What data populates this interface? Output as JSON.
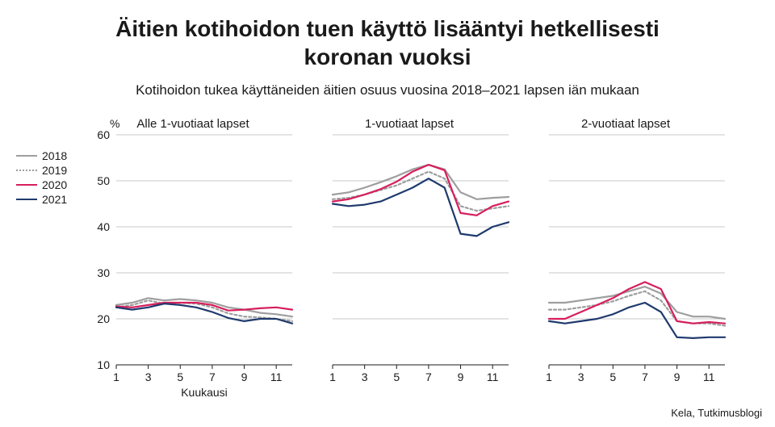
{
  "title_line1": "Äitien kotihoidon tuen käyttö lisääntyi hetkellisesti",
  "title_line2": "koronan vuoksi",
  "subtitle": "Kotihoidon tukea käyttäneiden äitien osuus vuosina 2018–2021 lapsen iän mukaan",
  "y_unit": "%",
  "x_label": "Kuukausi",
  "source": "Kela, Tutkimusblogi",
  "legend": [
    {
      "label": "2018",
      "color": "#9e9e9e",
      "dash": "none"
    },
    {
      "label": "2019",
      "color": "#9e9e9e",
      "dash": "3,3"
    },
    {
      "label": "2020",
      "color": "#d61f5c",
      "dash": "none"
    },
    {
      "label": "2021",
      "color": "#1f3a6e",
      "dash": "none"
    }
  ],
  "ylim": [
    10,
    60
  ],
  "yticks": [
    10,
    20,
    30,
    40,
    50,
    60
  ],
  "xlim": [
    1,
    12
  ],
  "xticks": [
    1,
    3,
    5,
    7,
    9,
    11
  ],
  "panels": [
    {
      "title": "Alle 1-vuotiaat lapset",
      "show_left_axis": true,
      "show_right_axis": false,
      "series": {
        "2018": [
          23.0,
          23.5,
          24.5,
          24.0,
          24.3,
          24.0,
          23.5,
          22.5,
          22.0,
          21.3,
          21.0,
          20.5
        ],
        "2019": [
          22.5,
          23.0,
          24.0,
          23.3,
          23.5,
          23.3,
          22.5,
          21.2,
          20.5,
          20.3,
          20.0,
          19.5
        ],
        "2020": [
          22.7,
          22.5,
          23.0,
          23.5,
          23.5,
          23.5,
          23.0,
          21.8,
          22.0,
          22.3,
          22.5,
          22.0
        ],
        "2021": [
          22.5,
          22.0,
          22.5,
          23.3,
          23.0,
          22.5,
          21.5,
          20.2,
          19.5,
          20.0,
          20.0,
          19.0
        ]
      }
    },
    {
      "title": "1-vuotiaat lapset",
      "show_left_axis": false,
      "show_right_axis": false,
      "series": {
        "2018": [
          47.0,
          47.5,
          48.5,
          49.7,
          51.0,
          52.5,
          53.5,
          52.5,
          47.5,
          46.0,
          46.3,
          46.5
        ],
        "2019": [
          46.0,
          46.3,
          47.0,
          48.0,
          49.0,
          50.5,
          52.0,
          50.5,
          44.5,
          43.5,
          44.0,
          44.5
        ],
        "2020": [
          45.5,
          46.0,
          47.0,
          48.2,
          49.8,
          52.0,
          53.5,
          52.3,
          43.0,
          42.5,
          44.5,
          45.5
        ],
        "2021": [
          45.0,
          44.5,
          44.8,
          45.5,
          47.0,
          48.5,
          50.5,
          48.5,
          38.5,
          38.0,
          40.0,
          41.0
        ]
      }
    },
    {
      "title": "2-vuotiaat lapset",
      "show_left_axis": false,
      "show_right_axis": true,
      "series": {
        "2018": [
          23.5,
          23.5,
          24.0,
          24.5,
          25.0,
          26.0,
          27.0,
          25.5,
          21.5,
          20.5,
          20.5,
          20.0
        ],
        "2019": [
          22.0,
          22.0,
          22.5,
          23.0,
          23.8,
          25.0,
          26.0,
          24.0,
          19.5,
          19.0,
          19.0,
          18.5
        ],
        "2020": [
          20.0,
          20.0,
          21.5,
          23.0,
          24.5,
          26.5,
          28.0,
          26.5,
          19.5,
          19.0,
          19.3,
          19.0
        ],
        "2021": [
          19.5,
          19.0,
          19.5,
          20.0,
          21.0,
          22.5,
          23.5,
          21.5,
          16.0,
          15.8,
          16.0,
          16.0
        ]
      }
    }
  ],
  "colors": {
    "grid": "#c9c9c9",
    "axis": "#1a1a1a",
    "text": "#1a1a1a",
    "background": "#ffffff"
  },
  "line_width": 2.2,
  "tick_fontsize": 14,
  "title_fontsize": 28,
  "subtitle_fontsize": 17,
  "panel_title_fontsize": 15
}
